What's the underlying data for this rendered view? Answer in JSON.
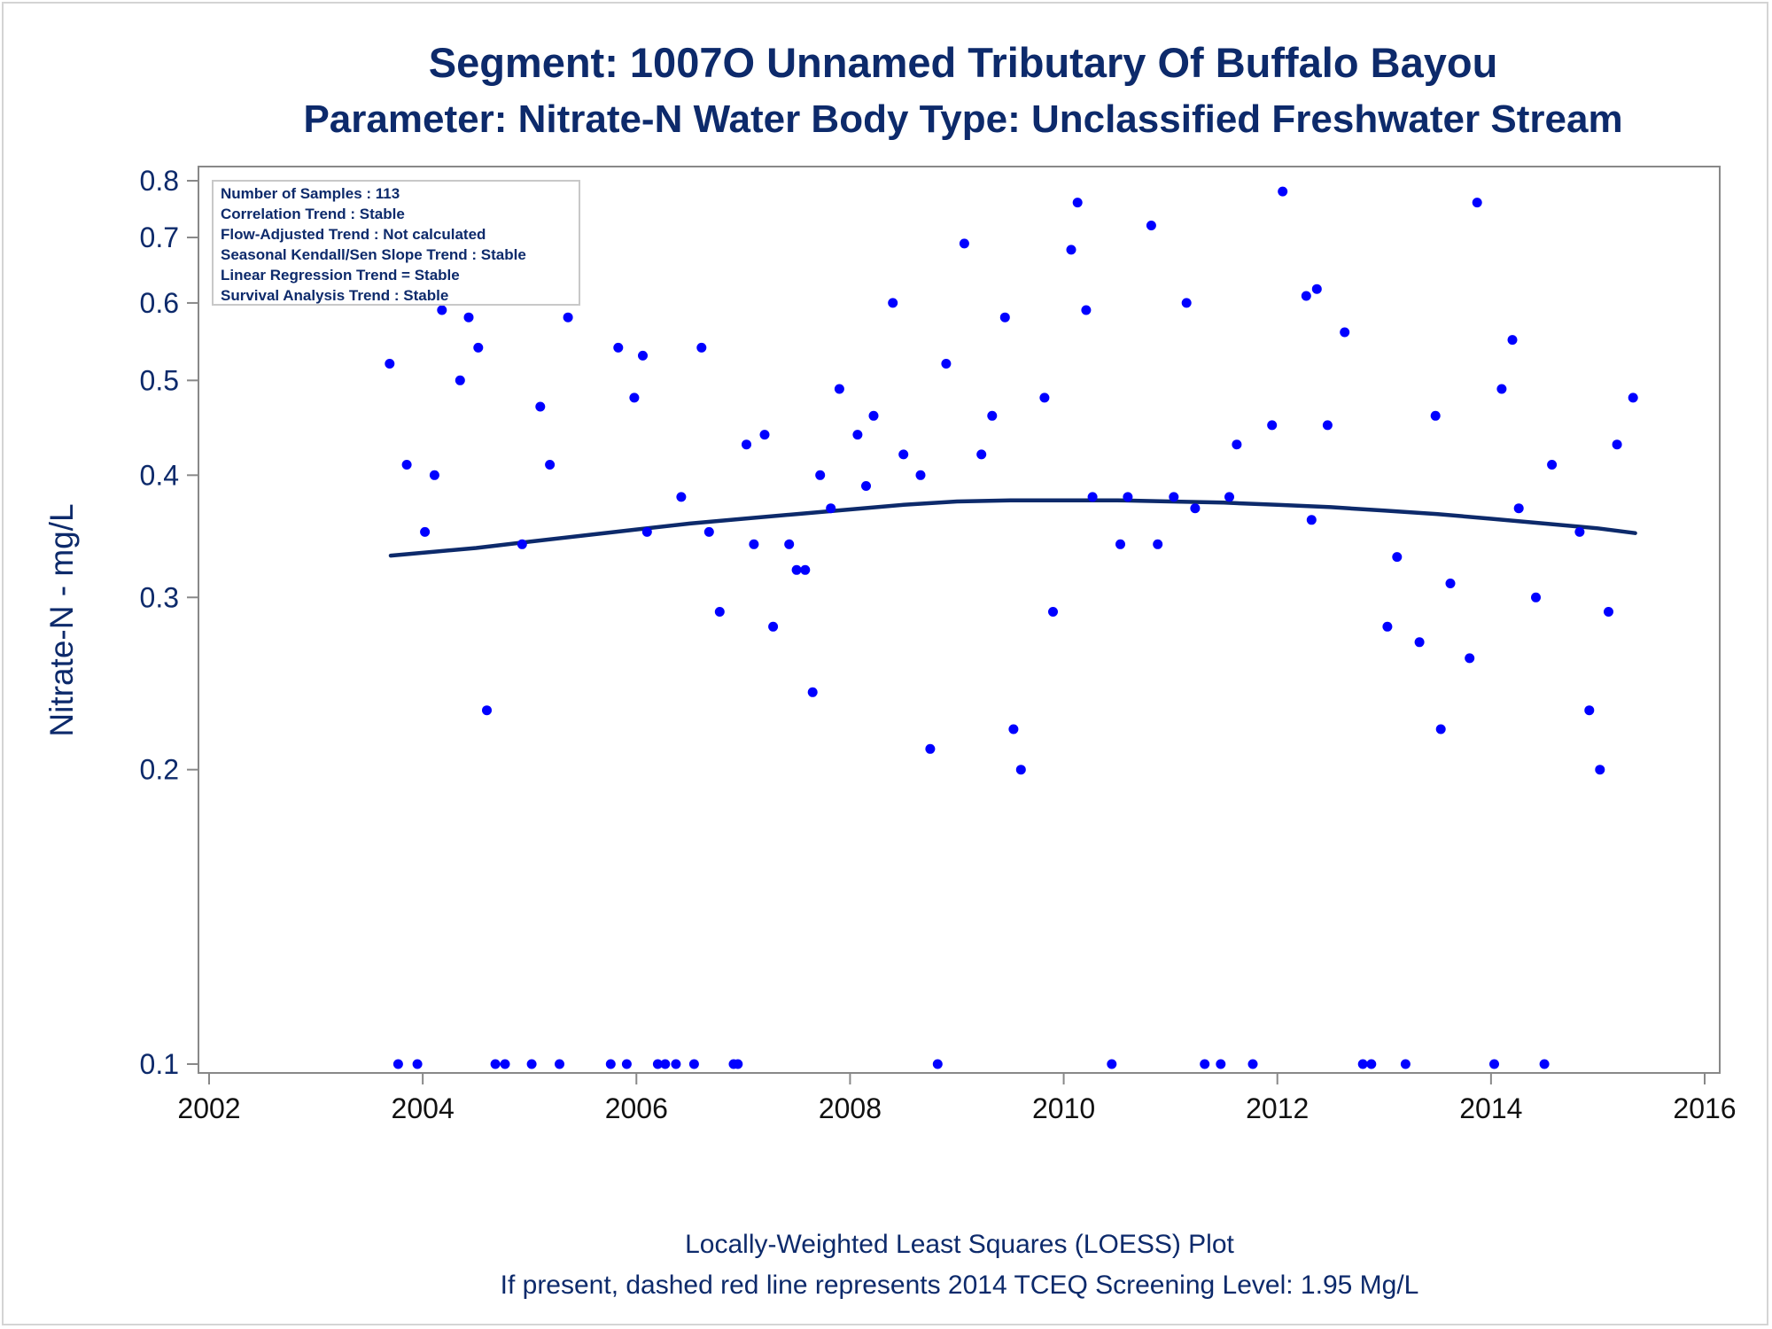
{
  "chart_data": {
    "type": "scatter",
    "title": "Segment: 1007O  Unnamed Tributary Of Buffalo Bayou",
    "subtitle": "Parameter: Nitrate-N   Water Body Type: Unclassified Freshwater Stream",
    "xlabel": "",
    "ylabel": "Nitrate-N - mg/L",
    "footnote_lines": [
      "Locally-Weighted Least Squares (LOESS) Plot",
      "If present, dashed red line represents 2014 TCEQ Screening Level: 1.95 Mg/L"
    ],
    "y_scale": "log",
    "xlim": [
      2002,
      2016
    ],
    "ylim": [
      0.1,
      0.8
    ],
    "x_ticks": [
      2002,
      2004,
      2006,
      2008,
      2010,
      2012,
      2014,
      2016
    ],
    "y_ticks": [
      0.1,
      0.2,
      0.3,
      0.4,
      0.5,
      0.6,
      0.7,
      0.8
    ],
    "grid": false,
    "legend_placement": "top-left",
    "info_box": [
      "Number of Samples : 113",
      "Correlation Trend : Stable",
      "Flow-Adjusted Trend : Not calculated",
      "Seasonal Kendall/Sen Slope Trend : Stable",
      "Linear Regression Trend = Stable",
      "Survival Analysis Trend : Stable"
    ],
    "colors": {
      "points": "#0000ff",
      "loess": "#0d2a6b",
      "text": "#0d2a6b"
    },
    "series": [
      {
        "type": "scatter",
        "points": [
          [
            2003.69,
            0.52
          ],
          [
            2003.77,
            0.1
          ],
          [
            2003.85,
            0.41
          ],
          [
            2003.95,
            0.1
          ],
          [
            2004.02,
            0.35
          ],
          [
            2004.11,
            0.4
          ],
          [
            2004.18,
            0.59
          ],
          [
            2004.26,
            0.62
          ],
          [
            2004.35,
            0.5
          ],
          [
            2004.43,
            0.58
          ],
          [
            2004.52,
            0.54
          ],
          [
            2004.6,
            0.23
          ],
          [
            2004.68,
            0.1
          ],
          [
            2004.77,
            0.1
          ],
          [
            2004.87,
            0.65
          ],
          [
            2004.93,
            0.34
          ],
          [
            2005.02,
            0.1
          ],
          [
            2005.1,
            0.47
          ],
          [
            2005.19,
            0.41
          ],
          [
            2005.28,
            0.1
          ],
          [
            2005.36,
            0.58
          ],
          [
            2005.76,
            0.1
          ],
          [
            2005.83,
            0.54
          ],
          [
            2005.91,
            0.1
          ],
          [
            2005.98,
            0.48
          ],
          [
            2006.06,
            0.53
          ],
          [
            2006.1,
            0.35
          ],
          [
            2006.2,
            0.1
          ],
          [
            2006.27,
            0.1
          ],
          [
            2006.37,
            0.1
          ],
          [
            2006.42,
            0.38
          ],
          [
            2006.54,
            0.1
          ],
          [
            2006.61,
            0.54
          ],
          [
            2006.68,
            0.35
          ],
          [
            2006.78,
            0.29
          ],
          [
            2006.91,
            0.1
          ],
          [
            2006.95,
            0.1
          ],
          [
            2007.03,
            0.43
          ],
          [
            2007.1,
            0.34
          ],
          [
            2007.2,
            0.44
          ],
          [
            2007.28,
            0.28
          ],
          [
            2007.43,
            0.34
          ],
          [
            2007.5,
            0.32
          ],
          [
            2007.58,
            0.32
          ],
          [
            2007.65,
            0.24
          ],
          [
            2007.72,
            0.4
          ],
          [
            2007.82,
            0.37
          ],
          [
            2007.9,
            0.49
          ],
          [
            2008.07,
            0.44
          ],
          [
            2008.15,
            0.39
          ],
          [
            2008.22,
            0.46
          ],
          [
            2008.4,
            0.6
          ],
          [
            2008.5,
            0.42
          ],
          [
            2008.66,
            0.4
          ],
          [
            2008.75,
            0.21
          ],
          [
            2008.82,
            0.1
          ],
          [
            2008.9,
            0.52
          ],
          [
            2009.07,
            0.69
          ],
          [
            2009.23,
            0.42
          ],
          [
            2009.33,
            0.46
          ],
          [
            2009.45,
            0.58
          ],
          [
            2009.53,
            0.22
          ],
          [
            2009.6,
            0.2
          ],
          [
            2009.82,
            0.48
          ],
          [
            2009.9,
            0.29
          ],
          [
            2010.07,
            0.68
          ],
          [
            2010.13,
            0.76
          ],
          [
            2010.21,
            0.59
          ],
          [
            2010.27,
            0.38
          ],
          [
            2010.45,
            0.1
          ],
          [
            2010.53,
            0.34
          ],
          [
            2010.6,
            0.38
          ],
          [
            2010.82,
            0.72
          ],
          [
            2010.88,
            0.34
          ],
          [
            2011.03,
            0.38
          ],
          [
            2011.15,
            0.6
          ],
          [
            2011.23,
            0.37
          ],
          [
            2011.32,
            0.1
          ],
          [
            2011.47,
            0.1
          ],
          [
            2011.55,
            0.38
          ],
          [
            2011.62,
            0.43
          ],
          [
            2011.77,
            0.1
          ],
          [
            2011.95,
            0.45
          ],
          [
            2012.05,
            0.78
          ],
          [
            2012.27,
            0.61
          ],
          [
            2012.32,
            0.36
          ],
          [
            2012.37,
            0.62
          ],
          [
            2012.47,
            0.45
          ],
          [
            2012.63,
            0.56
          ],
          [
            2012.8,
            0.1
          ],
          [
            2012.88,
            0.1
          ],
          [
            2013.03,
            0.28
          ],
          [
            2013.12,
            0.33
          ],
          [
            2013.2,
            0.1
          ],
          [
            2013.33,
            0.27
          ],
          [
            2013.48,
            0.46
          ],
          [
            2013.53,
            0.22
          ],
          [
            2013.62,
            0.31
          ],
          [
            2013.8,
            0.26
          ],
          [
            2013.87,
            0.76
          ],
          [
            2014.03,
            0.1
          ],
          [
            2014.1,
            0.49
          ],
          [
            2014.2,
            0.55
          ],
          [
            2014.26,
            0.37
          ],
          [
            2014.42,
            0.3
          ],
          [
            2014.5,
            0.1
          ],
          [
            2014.57,
            0.41
          ],
          [
            2014.83,
            0.35
          ],
          [
            2014.92,
            0.23
          ],
          [
            2015.02,
            0.2
          ],
          [
            2015.1,
            0.29
          ],
          [
            2015.18,
            0.43
          ],
          [
            2015.33,
            0.48
          ]
        ]
      },
      {
        "type": "line",
        "points": [
          [
            2003.7,
            0.331
          ],
          [
            2004.5,
            0.337
          ],
          [
            2005.0,
            0.342
          ],
          [
            2005.5,
            0.347
          ],
          [
            2006.0,
            0.352
          ],
          [
            2006.5,
            0.357
          ],
          [
            2007.0,
            0.361
          ],
          [
            2007.5,
            0.365
          ],
          [
            2008.0,
            0.369
          ],
          [
            2008.5,
            0.373
          ],
          [
            2009.0,
            0.376
          ],
          [
            2009.5,
            0.377
          ],
          [
            2010.0,
            0.377
          ],
          [
            2010.5,
            0.377
          ],
          [
            2011.0,
            0.376
          ],
          [
            2011.5,
            0.375
          ],
          [
            2012.0,
            0.373
          ],
          [
            2012.5,
            0.371
          ],
          [
            2013.0,
            0.368
          ],
          [
            2013.5,
            0.365
          ],
          [
            2014.0,
            0.361
          ],
          [
            2014.5,
            0.357
          ],
          [
            2015.0,
            0.353
          ],
          [
            2015.35,
            0.349
          ]
        ]
      }
    ]
  }
}
